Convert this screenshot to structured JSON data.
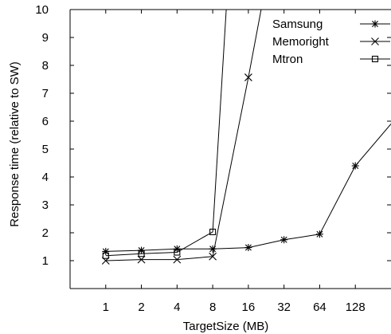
{
  "chart_data": {
    "type": "line",
    "title": "",
    "xlabel": "TargetSize (MB)",
    "ylabel": "Response time (relative to SW)",
    "x_scale": "log2",
    "categories": [
      "1",
      "2",
      "4",
      "8",
      "16",
      "32",
      "64",
      "128"
    ],
    "xlim": [
      0.5,
      256
    ],
    "ylim": [
      0,
      10
    ],
    "yticks": [
      "1",
      "2",
      "3",
      "4",
      "5",
      "6",
      "7",
      "8",
      "9",
      "10"
    ],
    "grid": false,
    "legend_position": "top-right",
    "series": [
      {
        "name": "Samsung",
        "marker": "asterisk",
        "x": [
          1,
          2,
          4,
          8,
          16,
          32,
          64,
          128,
          256
        ],
        "y": [
          1.33,
          1.37,
          1.42,
          1.42,
          1.47,
          1.75,
          1.95,
          4.4,
          5.9
        ]
      },
      {
        "name": "Memoright",
        "marker": "x",
        "x": [
          1,
          2,
          4,
          8,
          16,
          20.5
        ],
        "y": [
          1.0,
          1.04,
          1.04,
          1.15,
          7.57,
          10.0
        ]
      },
      {
        "name": "Mtron",
        "marker": "square",
        "x": [
          1,
          2,
          4,
          8,
          10.4
        ],
        "y": [
          1.18,
          1.25,
          1.3,
          2.03,
          10.0
        ]
      }
    ]
  }
}
